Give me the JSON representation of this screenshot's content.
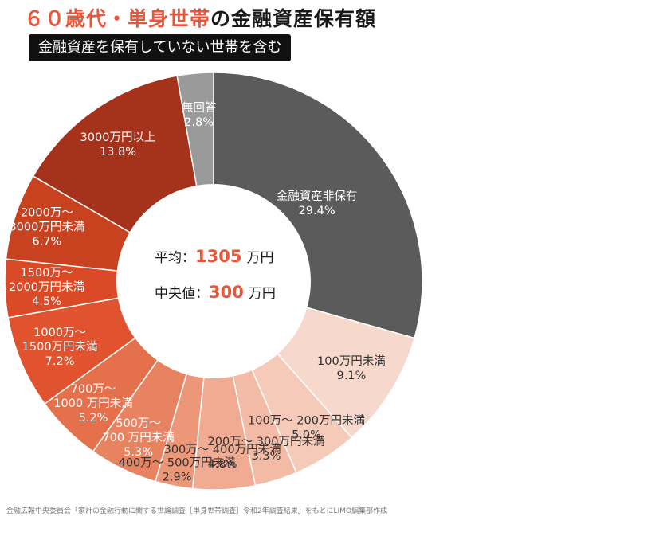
{
  "header": {
    "title_highlight": "６０歳代・単身世帯",
    "title_rest": "の金融資産保有額",
    "subtitle": "金融資産を保有していない世帯を含む"
  },
  "center": {
    "avg_label": "平均：",
    "avg_value": "1305",
    "avg_unit": "万円",
    "median_label": "中央値：",
    "median_value": "300",
    "median_unit": "万円"
  },
  "source": "金融広報中央委員会「家計の金融行動に関する世論調査［単身世帯調査］令和2年調査結果」をもとにLIMO編集部作成",
  "chart_data": {
    "type": "pie",
    "title": "６０歳代・単身世帯の金融資産保有額",
    "subtitle": "金融資産を保有していない世帯を含む",
    "start": "12 o'clock, clockwise",
    "slices": [
      {
        "label": [
          "金融資産非保有"
        ],
        "value": 29.4,
        "value_text": "29.4%",
        "color": "#5b5b5b",
        "text_color": "#ffffff"
      },
      {
        "label": [
          "100万円未満"
        ],
        "value": 9.1,
        "value_text": "9.1%",
        "color": "#f7d8cc",
        "text_color": "#333333"
      },
      {
        "label": [
          "100万～ 200万円未満"
        ],
        "value": 5.0,
        "value_text": "5.0%",
        "color": "#f5cab9",
        "text_color": "#333333"
      },
      {
        "label": [
          "200万～ 300万円未満"
        ],
        "value": 3.3,
        "value_text": "3.3%",
        "color": "#f3bba6",
        "text_color": "#333333"
      },
      {
        "label": [
          "300万～ 400万円未満"
        ],
        "value": 4.8,
        "value_text": "4.8%",
        "color": "#f0ab92",
        "text_color": "#333333"
      },
      {
        "label": [
          "400万～ 500万円未満"
        ],
        "value": 2.9,
        "value_text": "2.9%",
        "color": "#ec9778",
        "text_color": "#333333"
      },
      {
        "label": [
          "500万～",
          "700 万円未満"
        ],
        "value": 5.3,
        "value_text": "5.3%",
        "color": "#e88362",
        "text_color": "#ffffff"
      },
      {
        "label": [
          "700万～",
          "1000 万円未満"
        ],
        "value": 5.2,
        "value_text": "5.2%",
        "color": "#e5704c",
        "text_color": "#ffffff"
      },
      {
        "label": [
          "1000万～",
          "1500万円未満"
        ],
        "value": 7.2,
        "value_text": "7.2%",
        "color": "#e0532e",
        "text_color": "#ffffff"
      },
      {
        "label": [
          "1500万～",
          "2000万円未満"
        ],
        "value": 4.5,
        "value_text": "4.5%",
        "color": "#db4a26",
        "text_color": "#ffffff"
      },
      {
        "label": [
          "2000万～",
          "3000万円未満"
        ],
        "value": 6.7,
        "value_text": "6.7%",
        "color": "#c8421f",
        "text_color": "#ffffff"
      },
      {
        "label": [
          "3000万円以上"
        ],
        "value": 13.8,
        "value_text": "13.8%",
        "color": "#a5321b",
        "text_color": "#ffffff"
      },
      {
        "label": [
          "無回答"
        ],
        "value": 2.8,
        "value_text": "2.8%",
        "color": "#9a9a9a",
        "text_color": "#ffffff"
      }
    ],
    "summary": {
      "average": 1305,
      "median": 300,
      "unit": "万円"
    }
  }
}
